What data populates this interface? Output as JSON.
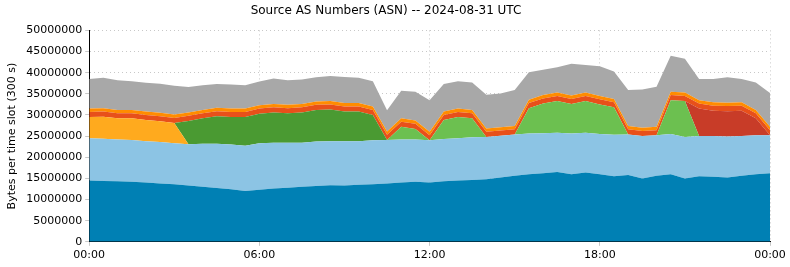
{
  "chart_data": {
    "type": "area",
    "title": "Source AS Numbers (ASN) -- 2024-08-31 UTC",
    "y_label": "Bytes per time slot (300 s)",
    "stacked": true,
    "grid": true,
    "x": [
      0,
      0.5,
      1,
      1.5,
      2,
      2.5,
      3,
      3.5,
      4,
      4.5,
      5,
      5.5,
      6,
      6.5,
      7,
      7.5,
      8,
      8.5,
      9,
      9.5,
      10,
      10.5,
      11,
      11.5,
      12,
      12.5,
      13,
      13.5,
      14,
      14.5,
      15,
      15.5,
      16,
      16.5,
      17,
      17.5,
      18,
      18.5,
      19,
      19.5,
      20,
      20.5,
      21,
      21.5,
      22,
      22.5,
      23,
      23.5,
      24
    ],
    "xlim": [
      0,
      24
    ],
    "xticks": [
      {
        "value": 0,
        "label": "00:00"
      },
      {
        "value": 6,
        "label": "06:00"
      },
      {
        "value": 12,
        "label": "12:00"
      },
      {
        "value": 18,
        "label": "18:00"
      },
      {
        "value": 24,
        "label": "00:00"
      }
    ],
    "ylim": [
      0,
      50000000
    ],
    "yticks": [
      0,
      5000000,
      10000000,
      15000000,
      20000000,
      25000000,
      30000000,
      35000000,
      40000000,
      45000000,
      50000000
    ],
    "series": [
      {
        "color": "#0080b4",
        "values": [
          14500000,
          14400000,
          14300000,
          14200000,
          14000000,
          13800000,
          13600000,
          13300000,
          13000000,
          12700000,
          12400000,
          12000000,
          12300000,
          12600000,
          12800000,
          13000000,
          13200000,
          13400000,
          13300000,
          13500000,
          13600000,
          13800000,
          14000000,
          14200000,
          14000000,
          14300000,
          14500000,
          14600000,
          14800000,
          15200000,
          15600000,
          16000000,
          16200000,
          16500000,
          16000000,
          16400000,
          16000000,
          15500000,
          15800000,
          15000000,
          15600000,
          16000000,
          15000000,
          15500000,
          15400000,
          15200000,
          15600000,
          16000000,
          16200000
        ]
      },
      {
        "color": "#8cc4e4",
        "values": [
          10000000,
          10000000,
          9900000,
          9900000,
          9800000,
          9800000,
          9700000,
          9800000,
          10200000,
          10500000,
          10600000,
          10700000,
          11000000,
          10800000,
          10600000,
          10400000,
          10500000,
          10400000,
          10500000,
          10300000,
          10400000,
          10300000,
          10200000,
          10000000,
          10000000,
          10000000,
          10000000,
          10100000,
          10000000,
          9900000,
          9800000,
          9600000,
          9500000,
          9300000,
          9600000,
          9400000,
          9500000,
          9800000,
          9600000,
          10000000,
          9600000,
          9500000,
          9800000,
          9500000,
          9600000,
          9700000,
          9400000,
          9200000,
          9000000
        ]
      },
      {
        "color": "#ffaa1e",
        "values": [
          5000000,
          5200000,
          5000000,
          5100000,
          5000000,
          4900000,
          4800000,
          0,
          0,
          0,
          0,
          0,
          0,
          0,
          0,
          0,
          0,
          0,
          0,
          0,
          0,
          0,
          0,
          0,
          0,
          0,
          0,
          0,
          0,
          0,
          0,
          0,
          0,
          0,
          0,
          0,
          0,
          0,
          0,
          0,
          0,
          0,
          0,
          0,
          0,
          0,
          0,
          0,
          0
        ]
      },
      {
        "color": "#4a9a32",
        "values": [
          0,
          0,
          0,
          0,
          0,
          0,
          0,
          5500000,
          6000000,
          6500000,
          6500000,
          6800000,
          7000000,
          7200000,
          7000000,
          7200000,
          7500000,
          7500000,
          7000000,
          7000000,
          6000000,
          0,
          0,
          0,
          0,
          0,
          0,
          0,
          0,
          0,
          0,
          0,
          0,
          0,
          0,
          0,
          0,
          0,
          0,
          0,
          0,
          0,
          0,
          0,
          0,
          0,
          0,
          0,
          0
        ]
      },
      {
        "color": "#6cc050",
        "values": [
          0,
          0,
          0,
          0,
          0,
          0,
          0,
          0,
          0,
          0,
          0,
          0,
          0,
          0,
          0,
          0,
          0,
          0,
          0,
          0,
          0,
          0,
          3000000,
          2500000,
          0,
          4500000,
          5000000,
          4500000,
          0,
          0,
          0,
          6000000,
          7000000,
          7500000,
          7000000,
          7500000,
          7000000,
          6500000,
          0,
          0,
          0,
          8000000,
          8500000,
          0,
          0,
          0,
          0,
          0,
          0
        ]
      },
      {
        "color": "#c83c28",
        "values": [
          0,
          0,
          0,
          0,
          0,
          0,
          0,
          0,
          0,
          0,
          0,
          0,
          0,
          0,
          0,
          0,
          0,
          0,
          0,
          0,
          0,
          0,
          0,
          0,
          0,
          0,
          0,
          0,
          0,
          0,
          0,
          0,
          0,
          0,
          0,
          0,
          0,
          0,
          0,
          0,
          0,
          0,
          0,
          6500000,
          6000000,
          6000000,
          6000000,
          4000000,
          0
        ]
      },
      {
        "color": "#e8501a",
        "values": [
          1200000,
          1200000,
          1200000,
          1200000,
          1200000,
          1200000,
          1200000,
          1200000,
          1200000,
          1200000,
          1200000,
          1200000,
          1200000,
          1200000,
          1200000,
          1200000,
          1200000,
          1200000,
          1200000,
          1200000,
          1200000,
          1200000,
          1200000,
          1200000,
          1200000,
          1200000,
          1200000,
          1200000,
          1200000,
          1200000,
          1200000,
          1200000,
          1200000,
          1200000,
          1200000,
          1200000,
          1200000,
          1200000,
          1200000,
          1200000,
          1200000,
          1200000,
          1200000,
          1200000,
          1200000,
          1200000,
          1200000,
          1200000,
          1200000
        ]
      },
      {
        "color": "#ff8c00",
        "values": [
          800000,
          800000,
          800000,
          800000,
          800000,
          800000,
          800000,
          800000,
          800000,
          800000,
          800000,
          800000,
          800000,
          800000,
          800000,
          800000,
          800000,
          800000,
          800000,
          800000,
          800000,
          800000,
          800000,
          800000,
          800000,
          800000,
          800000,
          800000,
          800000,
          800000,
          800000,
          800000,
          800000,
          800000,
          800000,
          800000,
          800000,
          800000,
          800000,
          800000,
          800000,
          800000,
          800000,
          800000,
          800000,
          800000,
          800000,
          800000,
          800000
        ]
      },
      {
        "color": "#a8a8a8",
        "values": [
          7000000,
          7200000,
          7000000,
          6800000,
          6800000,
          6900000,
          6800000,
          6000000,
          5800000,
          5600000,
          5700000,
          5500000,
          5600000,
          6000000,
          5800000,
          5800000,
          5700000,
          5900000,
          6200000,
          6000000,
          6000000,
          5000000,
          6500000,
          6800000,
          7500000,
          6500000,
          6500000,
          6500000,
          8000000,
          8000000,
          8500000,
          6500000,
          6000000,
          6000000,
          7500000,
          6500000,
          7000000,
          6500000,
          8500000,
          9000000,
          9500000,
          8500000,
          8000000,
          5000000,
          5500000,
          6000000,
          5500000,
          6500000,
          8000000
        ]
      }
    ]
  }
}
